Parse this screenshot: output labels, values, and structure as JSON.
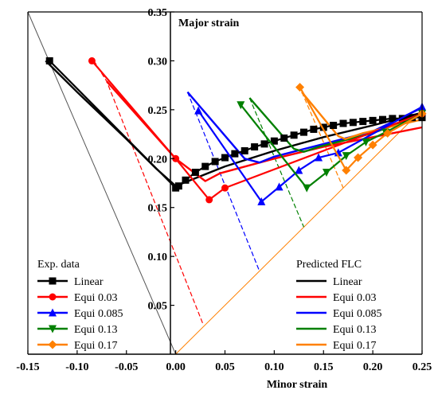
{
  "chart_data": {
    "type": "line",
    "xlabel": "Minor strain",
    "ylabel": "Major strain",
    "xlim": [
      -0.15,
      0.25
    ],
    "ylim": [
      0,
      0.35
    ],
    "x_ticks": [
      "-0.15",
      "-0.10",
      "-0.05",
      "0.00",
      "0.05",
      "0.10",
      "0.15",
      "0.20",
      "0.25"
    ],
    "y_ticks": [
      "0.05",
      "0.10",
      "0.15",
      "0.20",
      "0.25",
      "0.30",
      "0.35"
    ],
    "grid": false,
    "legend_exp": {
      "title": "Exp. data",
      "entries": [
        {
          "label": "Linear",
          "color": "#000000",
          "marker": "square"
        },
        {
          "label": "Equi 0.03",
          "color": "#ff0000",
          "marker": "circle"
        },
        {
          "label": "Equi 0.085",
          "color": "#0000ff",
          "marker": "triangle-up"
        },
        {
          "label": "Equi 0.13",
          "color": "#008000",
          "marker": "triangle-down"
        },
        {
          "label": "Equi 0.17",
          "color": "#ff8000",
          "marker": "diamond"
        }
      ]
    },
    "legend_pred": {
      "title": "Predicted FLC",
      "entries": [
        {
          "label": "Linear",
          "color": "#000000"
        },
        {
          "label": "Equi 0.03",
          "color": "#ff0000"
        },
        {
          "label": "Equi 0.085",
          "color": "#0000ff"
        },
        {
          "label": "Equi 0.13",
          "color": "#008000"
        },
        {
          "label": "Equi 0.17",
          "color": "#ff8000"
        }
      ]
    },
    "reference_lines": [
      {
        "name": "uniaxial-reference",
        "color": "#555555",
        "points": [
          [
            -0.15,
            0.35
          ],
          [
            0.0,
            0.0
          ]
        ]
      },
      {
        "name": "equibiaxial-reference",
        "color": "#ff8000",
        "points": [
          [
            0.0,
            0.0
          ],
          [
            0.25,
            0.25
          ]
        ]
      }
    ],
    "strain_paths": [
      {
        "name": "Equi 0.03",
        "color": "#ff0000",
        "points": [
          [
            -0.083,
            0.3
          ],
          [
            -0.07,
            0.279
          ],
          [
            0.028,
            0.03
          ]
        ]
      },
      {
        "name": "Equi 0.085",
        "color": "#0000ff",
        "points": [
          [
            0.012,
            0.268
          ],
          [
            0.085,
            0.085
          ]
        ]
      },
      {
        "name": "Equi 0.13",
        "color": "#008000",
        "points": [
          [
            0.075,
            0.262
          ],
          [
            0.13,
            0.13
          ]
        ]
      },
      {
        "name": "Equi 0.17",
        "color": "#ff8000",
        "points": [
          [
            0.128,
            0.268
          ],
          [
            0.17,
            0.17
          ]
        ]
      }
    ],
    "series_exp": [
      {
        "name": "Linear",
        "color": "#000000",
        "marker": "square",
        "points": [
          [
            -0.128,
            0.3
          ],
          [
            0.0,
            0.17
          ],
          [
            0.003,
            0.172
          ],
          [
            0.01,
            0.178
          ],
          [
            0.02,
            0.186
          ],
          [
            0.03,
            0.192
          ],
          [
            0.04,
            0.197
          ],
          [
            0.05,
            0.201
          ],
          [
            0.06,
            0.205
          ],
          [
            0.07,
            0.208
          ],
          [
            0.08,
            0.212
          ],
          [
            0.09,
            0.215
          ],
          [
            0.1,
            0.218
          ],
          [
            0.11,
            0.221
          ],
          [
            0.12,
            0.224
          ],
          [
            0.13,
            0.227
          ],
          [
            0.14,
            0.23
          ],
          [
            0.15,
            0.232
          ],
          [
            0.16,
            0.234
          ],
          [
            0.17,
            0.236
          ],
          [
            0.18,
            0.237
          ],
          [
            0.19,
            0.238
          ],
          [
            0.2,
            0.239
          ],
          [
            0.21,
            0.24
          ],
          [
            0.22,
            0.241
          ],
          [
            0.23,
            0.241
          ],
          [
            0.24,
            0.242
          ],
          [
            0.25,
            0.242
          ]
        ]
      },
      {
        "name": "Equi 0.03",
        "color": "#ff0000",
        "marker": "circle",
        "points": [
          [
            -0.085,
            0.3
          ],
          [
            0.0,
            0.2
          ],
          [
            0.034,
            0.158
          ],
          [
            0.05,
            0.17
          ],
          [
            0.25,
            0.246
          ]
        ]
      },
      {
        "name": "Equi 0.085",
        "color": "#0000ff",
        "marker": "triangle-up",
        "points": [
          [
            0.023,
            0.249
          ],
          [
            0.087,
            0.156
          ],
          [
            0.105,
            0.171
          ],
          [
            0.125,
            0.188
          ],
          [
            0.145,
            0.201
          ],
          [
            0.165,
            0.206
          ],
          [
            0.25,
            0.253
          ]
        ]
      },
      {
        "name": "Equi 0.13",
        "color": "#008000",
        "marker": "triangle-down",
        "points": [
          [
            0.066,
            0.255
          ],
          [
            0.133,
            0.17
          ],
          [
            0.153,
            0.186
          ],
          [
            0.173,
            0.203
          ],
          [
            0.193,
            0.217
          ],
          [
            0.213,
            0.227
          ],
          [
            0.25,
            0.246
          ]
        ]
      },
      {
        "name": "Equi 0.17",
        "color": "#ff8000",
        "marker": "diamond",
        "points": [
          [
            0.126,
            0.273
          ],
          [
            0.173,
            0.188
          ],
          [
            0.185,
            0.201
          ],
          [
            0.2,
            0.214
          ],
          [
            0.215,
            0.226
          ],
          [
            0.25,
            0.246
          ]
        ]
      }
    ],
    "series_pred": [
      {
        "name": "Linear",
        "color": "#000000",
        "points": [
          [
            -0.132,
            0.3
          ],
          [
            -0.1,
            0.268
          ],
          [
            -0.05,
            0.22
          ],
          [
            -0.02,
            0.19
          ],
          [
            0.0,
            0.172
          ],
          [
            0.02,
            0.18
          ],
          [
            0.05,
            0.192
          ],
          [
            0.1,
            0.208
          ],
          [
            0.15,
            0.222
          ],
          [
            0.2,
            0.234
          ],
          [
            0.25,
            0.247
          ]
        ]
      },
      {
        "name": "Equi 0.03",
        "color": "#ff0000",
        "points": [
          [
            -0.07,
            0.279
          ],
          [
            0.0,
            0.2
          ],
          [
            0.03,
            0.177
          ],
          [
            0.045,
            0.185
          ],
          [
            0.1,
            0.2
          ],
          [
            0.15,
            0.212
          ],
          [
            0.2,
            0.222
          ],
          [
            0.25,
            0.232
          ]
        ]
      },
      {
        "name": "Equi 0.085",
        "color": "#0000ff",
        "points": [
          [
            0.012,
            0.268
          ],
          [
            0.07,
            0.2
          ],
          [
            0.085,
            0.196
          ],
          [
            0.1,
            0.202
          ],
          [
            0.15,
            0.215
          ],
          [
            0.2,
            0.228
          ],
          [
            0.25,
            0.252
          ]
        ]
      },
      {
        "name": "Equi 0.13",
        "color": "#008000",
        "points": [
          [
            0.075,
            0.262
          ],
          [
            0.12,
            0.21
          ],
          [
            0.13,
            0.207
          ],
          [
            0.145,
            0.212
          ],
          [
            0.2,
            0.226
          ],
          [
            0.25,
            0.245
          ]
        ]
      },
      {
        "name": "Equi 0.17",
        "color": "#ff8000",
        "points": [
          [
            0.128,
            0.268
          ],
          [
            0.165,
            0.223
          ],
          [
            0.172,
            0.22
          ],
          [
            0.19,
            0.226
          ],
          [
            0.25,
            0.24
          ]
        ]
      }
    ]
  }
}
